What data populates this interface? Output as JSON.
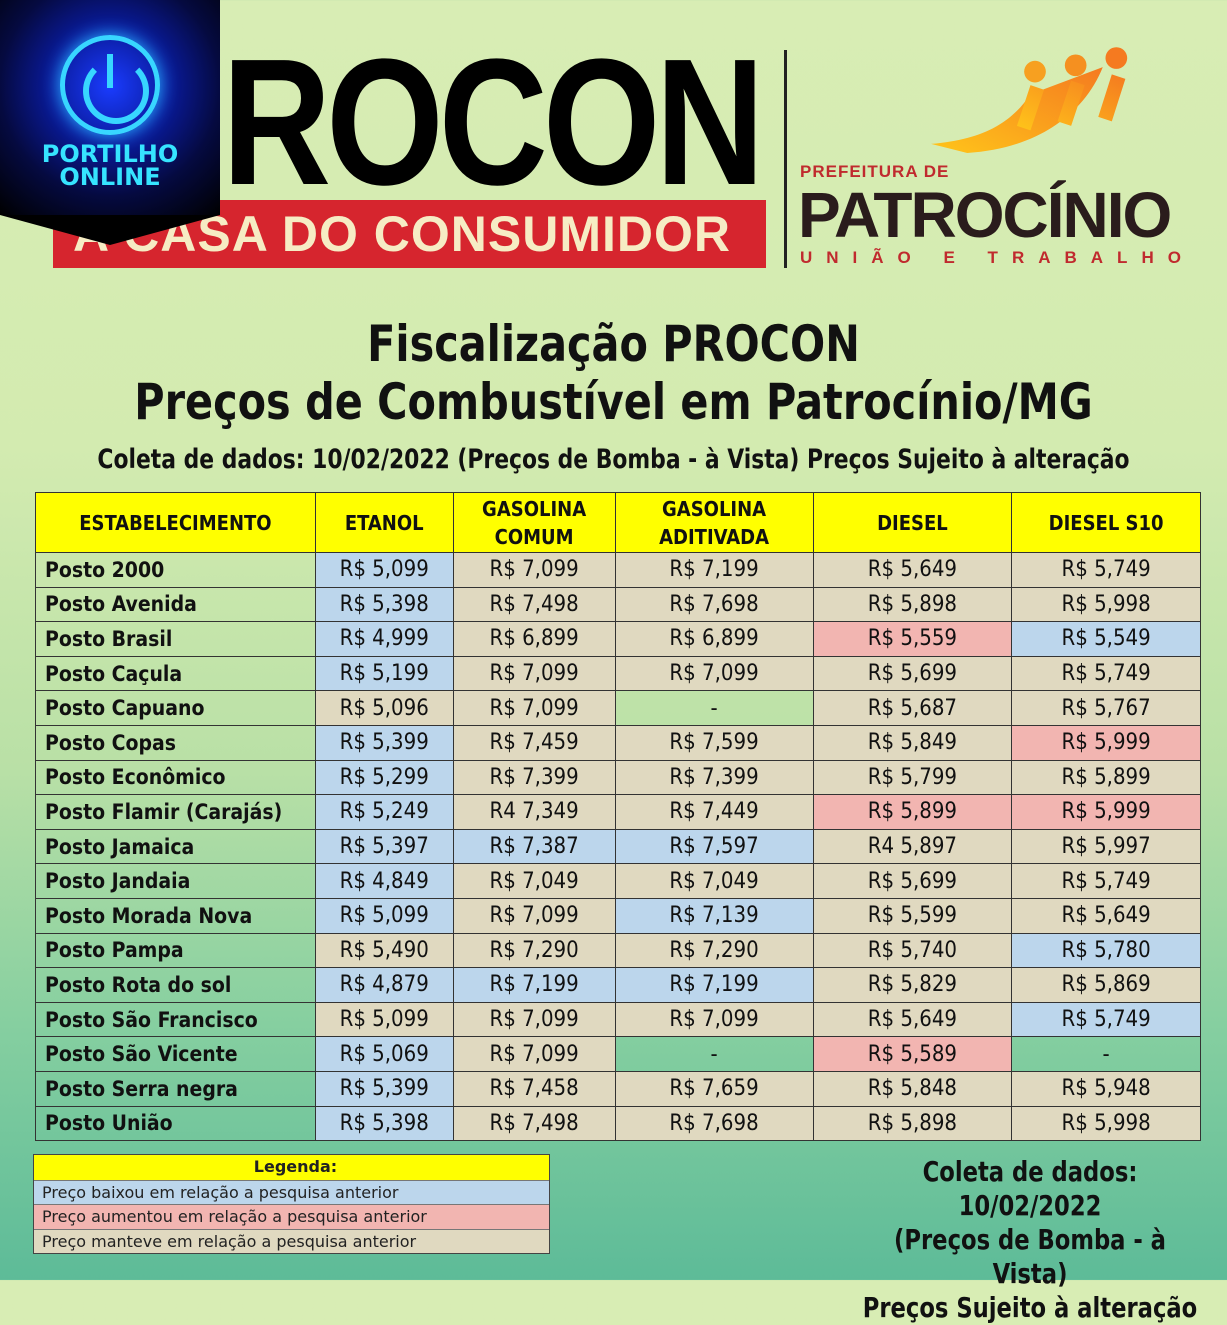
{
  "badge": {
    "line1": "PORTILHO",
    "line2": "ONLINE"
  },
  "header": {
    "procon": "ROCON",
    "tagline": "A CASA DO CONSUMIDOR",
    "prefeitura": "PREFEITURA DE",
    "city": "PATROCÍNIO",
    "motto": "UNIÃO E TRABALHO"
  },
  "title": {
    "line1": "Fiscalização PROCON",
    "line2": "Preços de Combustível em Patrocínio/MG",
    "line3": "Coleta de dados: 10/02/2022 (Preços de Bomba - à Vista) Preços Sujeito à alteração"
  },
  "colors": {
    "lowered": "#bcd6ec",
    "raised": "#f2b5b1",
    "kept": "#e0d9c0",
    "header": "#ffff00"
  },
  "table": {
    "headers": [
      "ESTABELECIMENTO",
      "ETANOL",
      "GASOLINA COMUM",
      "GASOLINA ADITIVADA",
      "DIESEL",
      "DIESEL S10"
    ],
    "status_key": {
      "b": "lowered",
      "r": "raised",
      "t": "kept",
      "n": "none"
    },
    "rows": [
      {
        "name": "Posto 2000",
        "values": [
          "R$ 5,099",
          "R$ 7,099",
          "R$ 7,199",
          "R$ 5,649",
          "R$ 5,749"
        ],
        "status": [
          "b",
          "t",
          "t",
          "t",
          "t"
        ]
      },
      {
        "name": "Posto Avenida",
        "values": [
          "R$ 5,398",
          "R$ 7,498",
          "R$ 7,698",
          "R$ 5,898",
          "R$ 5,998"
        ],
        "status": [
          "b",
          "t",
          "t",
          "t",
          "t"
        ]
      },
      {
        "name": "Posto Brasil",
        "values": [
          "R$ 4,999",
          "R$ 6,899",
          "R$ 6,899",
          "R$ 5,559",
          "R$ 5,549"
        ],
        "status": [
          "b",
          "t",
          "t",
          "r",
          "b"
        ]
      },
      {
        "name": "Posto Caçula",
        "values": [
          "R$ 5,199",
          "R$ 7,099",
          "R$ 7,099",
          "R$ 5,699",
          "R$ 5,749"
        ],
        "status": [
          "b",
          "t",
          "t",
          "t",
          "t"
        ]
      },
      {
        "name": "Posto Capuano",
        "values": [
          "R$ 5,096",
          "R$ 7,099",
          "-",
          "R$ 5,687",
          "R$ 5,767"
        ],
        "status": [
          "t",
          "t",
          "n",
          "t",
          "t"
        ]
      },
      {
        "name": "Posto Copas",
        "values": [
          "R$ 5,399",
          "R$ 7,459",
          "R$ 7,599",
          "R$ 5,849",
          "R$ 5,999"
        ],
        "status": [
          "b",
          "t",
          "t",
          "t",
          "r"
        ]
      },
      {
        "name": "Posto Econômico",
        "values": [
          "R$ 5,299",
          "R$ 7,399",
          "R$ 7,399",
          "R$ 5,799",
          "R$ 5,899"
        ],
        "status": [
          "b",
          "t",
          "t",
          "t",
          "t"
        ]
      },
      {
        "name": "Posto Flamir (Carajás)",
        "values": [
          "R$ 5,249",
          "R4 7,349",
          "R$ 7,449",
          "R$ 5,899",
          "R$ 5,999"
        ],
        "status": [
          "b",
          "t",
          "t",
          "r",
          "r"
        ]
      },
      {
        "name": "Posto Jamaica",
        "values": [
          "R$ 5,397",
          "R$ 7,387",
          "R$ 7,597",
          "R4 5,897",
          "R$ 5,997"
        ],
        "status": [
          "b",
          "b",
          "b",
          "t",
          "t"
        ]
      },
      {
        "name": "Posto Jandaia",
        "values": [
          "R$ 4,849",
          "R$ 7,049",
          "R$ 7,049",
          "R$ 5,699",
          "R$ 5,749"
        ],
        "status": [
          "b",
          "t",
          "t",
          "t",
          "t"
        ]
      },
      {
        "name": "Posto Morada Nova",
        "values": [
          "R$ 5,099",
          "R$ 7,099",
          "R$ 7,139",
          "R$ 5,599",
          "R$ 5,649"
        ],
        "status": [
          "b",
          "t",
          "b",
          "t",
          "t"
        ]
      },
      {
        "name": "Posto Pampa",
        "values": [
          "R$ 5,490",
          "R$ 7,290",
          "R$ 7,290",
          "R$ 5,740",
          "R$ 5,780"
        ],
        "status": [
          "t",
          "t",
          "t",
          "t",
          "b"
        ]
      },
      {
        "name": "Posto Rota do sol",
        "values": [
          "R$ 4,879",
          "R$ 7,199",
          "R$ 7,199",
          "R$ 5,829",
          "R$ 5,869"
        ],
        "status": [
          "b",
          "b",
          "b",
          "t",
          "t"
        ]
      },
      {
        "name": "Posto São Francisco",
        "values": [
          "R$ 5,099",
          "R$ 7,099",
          "R$ 7,099",
          "R$ 5,649",
          "R$ 5,749"
        ],
        "status": [
          "t",
          "t",
          "t",
          "t",
          "b"
        ]
      },
      {
        "name": "Posto São Vicente",
        "values": [
          "R$ 5,069",
          "R$ 7,099",
          "-",
          "R$ 5,589",
          "-"
        ],
        "status": [
          "b",
          "t",
          "n",
          "r",
          "n"
        ]
      },
      {
        "name": "Posto Serra negra",
        "values": [
          "R$ 5,399",
          "R$ 7,458",
          "R$ 7,659",
          "R$ 5,848",
          "R$ 5,948"
        ],
        "status": [
          "b",
          "t",
          "t",
          "t",
          "t"
        ]
      },
      {
        "name": "Posto União",
        "values": [
          "R$ 5,398",
          "R$ 7,498",
          "R$ 7,698",
          "R$ 5,898",
          "R$ 5,998"
        ],
        "status": [
          "b",
          "t",
          "t",
          "t",
          "t"
        ]
      }
    ]
  },
  "legend": {
    "title": "Legenda:",
    "lowered": "Preço baixou em relação a pesquisa anterior",
    "raised": "Preço aumentou em relação a pesquisa anterior",
    "kept": "Preço manteve em relação a pesquisa anterior"
  },
  "note": {
    "line1": "Coleta de dados: 10/02/2022",
    "line2": "(Preços de Bomba - à Vista)",
    "line3": "Preços Sujeito à alteração"
  }
}
